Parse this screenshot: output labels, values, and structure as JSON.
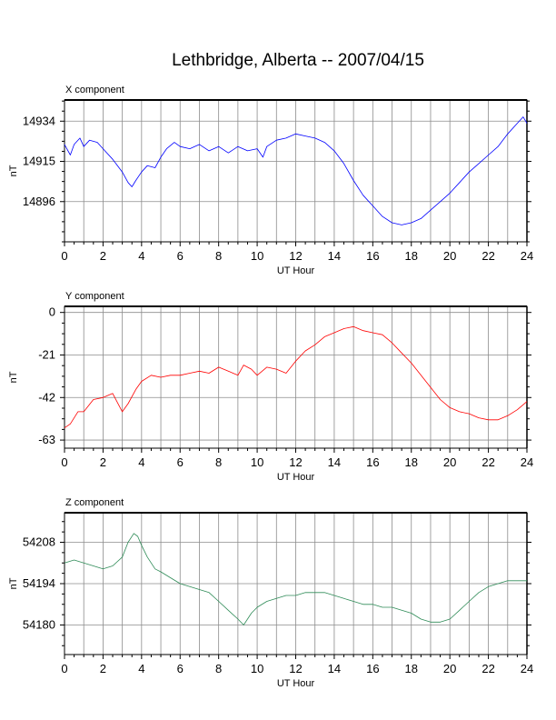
{
  "title": "Lethbridge, Alberta -- 2007/04/15",
  "chart_data": [
    {
      "type": "line",
      "title": "X component",
      "xlabel": "UT Hour",
      "ylabel": "nT",
      "xlim": [
        0,
        24
      ],
      "ylim": [
        14877,
        14944
      ],
      "xticks": [
        0,
        2,
        4,
        6,
        8,
        10,
        12,
        14,
        16,
        18,
        20,
        22,
        24
      ],
      "yticks": [
        14896,
        14915,
        14934
      ],
      "grid": true,
      "color": "#0000ff",
      "x": [
        0,
        0.3,
        0.5,
        0.8,
        1.0,
        1.3,
        1.7,
        2.0,
        2.5,
        3.0,
        3.3,
        3.5,
        3.7,
        4.0,
        4.3,
        4.7,
        5.0,
        5.3,
        5.7,
        6.0,
        6.5,
        7.0,
        7.5,
        8.0,
        8.5,
        9.0,
        9.5,
        10.0,
        10.3,
        10.5,
        11.0,
        11.5,
        12.0,
        12.5,
        13.0,
        13.5,
        14.0,
        14.5,
        15.0,
        15.5,
        16.0,
        16.5,
        17.0,
        17.5,
        18.0,
        18.5,
        19.0,
        19.5,
        20.0,
        20.5,
        21.0,
        21.5,
        22.0,
        22.5,
        23.0,
        23.5,
        23.8,
        24.0
      ],
      "y": [
        14923,
        14918,
        14923,
        14926,
        14922,
        14925,
        14924,
        14921,
        14916,
        14910,
        14905,
        14903,
        14906,
        14910,
        14913,
        14912,
        14917,
        14921,
        14924,
        14922,
        14921,
        14923,
        14920,
        14922,
        14919,
        14922,
        14920,
        14921,
        14917,
        14922,
        14925,
        14926,
        14928,
        14927,
        14926,
        14924,
        14920,
        14914,
        14906,
        14899,
        14894,
        14889,
        14886,
        14885,
        14886,
        14888,
        14892,
        14896,
        14900,
        14905,
        14910,
        14914,
        14918,
        14922,
        14928,
        14933,
        14936,
        14933
      ]
    },
    {
      "type": "line",
      "title": "Y component",
      "xlabel": "UT Hour",
      "ylabel": "nT",
      "xlim": [
        0,
        24
      ],
      "ylim": [
        -67,
        3
      ],
      "xticks": [
        0,
        2,
        4,
        6,
        8,
        10,
        12,
        14,
        16,
        18,
        20,
        22,
        24
      ],
      "yticks": [
        -63,
        -42,
        -21,
        0
      ],
      "grid": true,
      "color": "#ff0000",
      "x": [
        0,
        0.3,
        0.7,
        1.0,
        1.5,
        2.0,
        2.5,
        3.0,
        3.3,
        3.7,
        4.0,
        4.5,
        5.0,
        5.5,
        6.0,
        6.5,
        7.0,
        7.5,
        8.0,
        8.5,
        9.0,
        9.3,
        9.7,
        10.0,
        10.5,
        11.0,
        11.5,
        12.0,
        12.5,
        13.0,
        13.5,
        14.0,
        14.5,
        15.0,
        15.5,
        16.0,
        16.5,
        17.0,
        17.5,
        18.0,
        18.5,
        19.0,
        19.5,
        20.0,
        20.5,
        21.0,
        21.5,
        22.0,
        22.5,
        23.0,
        23.5,
        24.0
      ],
      "y": [
        -57,
        -55,
        -49,
        -49,
        -43,
        -42,
        -40,
        -49,
        -45,
        -38,
        -34,
        -31,
        -32,
        -31,
        -31,
        -30,
        -29,
        -30,
        -27,
        -29,
        -31,
        -26,
        -28,
        -31,
        -27,
        -28,
        -30,
        -24,
        -19,
        -16,
        -12,
        -10,
        -8,
        -7,
        -9,
        -10,
        -11,
        -15,
        -20,
        -25,
        -31,
        -37,
        -43,
        -47,
        -49,
        -50,
        -52,
        -53,
        -53,
        -51,
        -48,
        -44
      ]
    },
    {
      "type": "line",
      "title": "Z component",
      "xlabel": "UT Hour",
      "ylabel": "nT",
      "xlim": [
        0,
        24
      ],
      "ylim": [
        54170,
        54218
      ],
      "xticks": [
        0,
        2,
        4,
        6,
        8,
        10,
        12,
        14,
        16,
        18,
        20,
        22,
        24
      ],
      "yticks": [
        54180,
        54194,
        54208
      ],
      "grid": true,
      "color": "#2e8b57",
      "x": [
        0,
        0.5,
        1.0,
        1.5,
        2.0,
        2.5,
        3.0,
        3.3,
        3.6,
        3.8,
        4.0,
        4.3,
        4.7,
        5.0,
        5.5,
        6.0,
        6.5,
        7.0,
        7.5,
        8.0,
        8.5,
        9.0,
        9.3,
        9.7,
        10.0,
        10.5,
        11.0,
        11.5,
        12.0,
        12.5,
        13.0,
        13.5,
        14.0,
        14.5,
        15.0,
        15.5,
        16.0,
        16.5,
        17.0,
        17.5,
        18.0,
        18.5,
        19.0,
        19.5,
        20.0,
        20.5,
        21.0,
        21.5,
        22.0,
        22.5,
        23.0,
        23.5,
        24.0
      ],
      "y": [
        54201,
        54202,
        54201,
        54200,
        54199,
        54200,
        54203,
        54208,
        54211,
        54210,
        54207,
        54203,
        54199,
        54198,
        54196,
        54194,
        54193,
        54192,
        54191,
        54188,
        54185,
        54182,
        54180,
        54184,
        54186,
        54188,
        54189,
        54190,
        54190,
        54191,
        54191,
        54191,
        54190,
        54189,
        54188,
        54187,
        54187,
        54186,
        54186,
        54185,
        54184,
        54182,
        54181,
        54181,
        54182,
        54185,
        54188,
        54191,
        54193,
        54194,
        54195,
        54195,
        54195
      ]
    }
  ]
}
